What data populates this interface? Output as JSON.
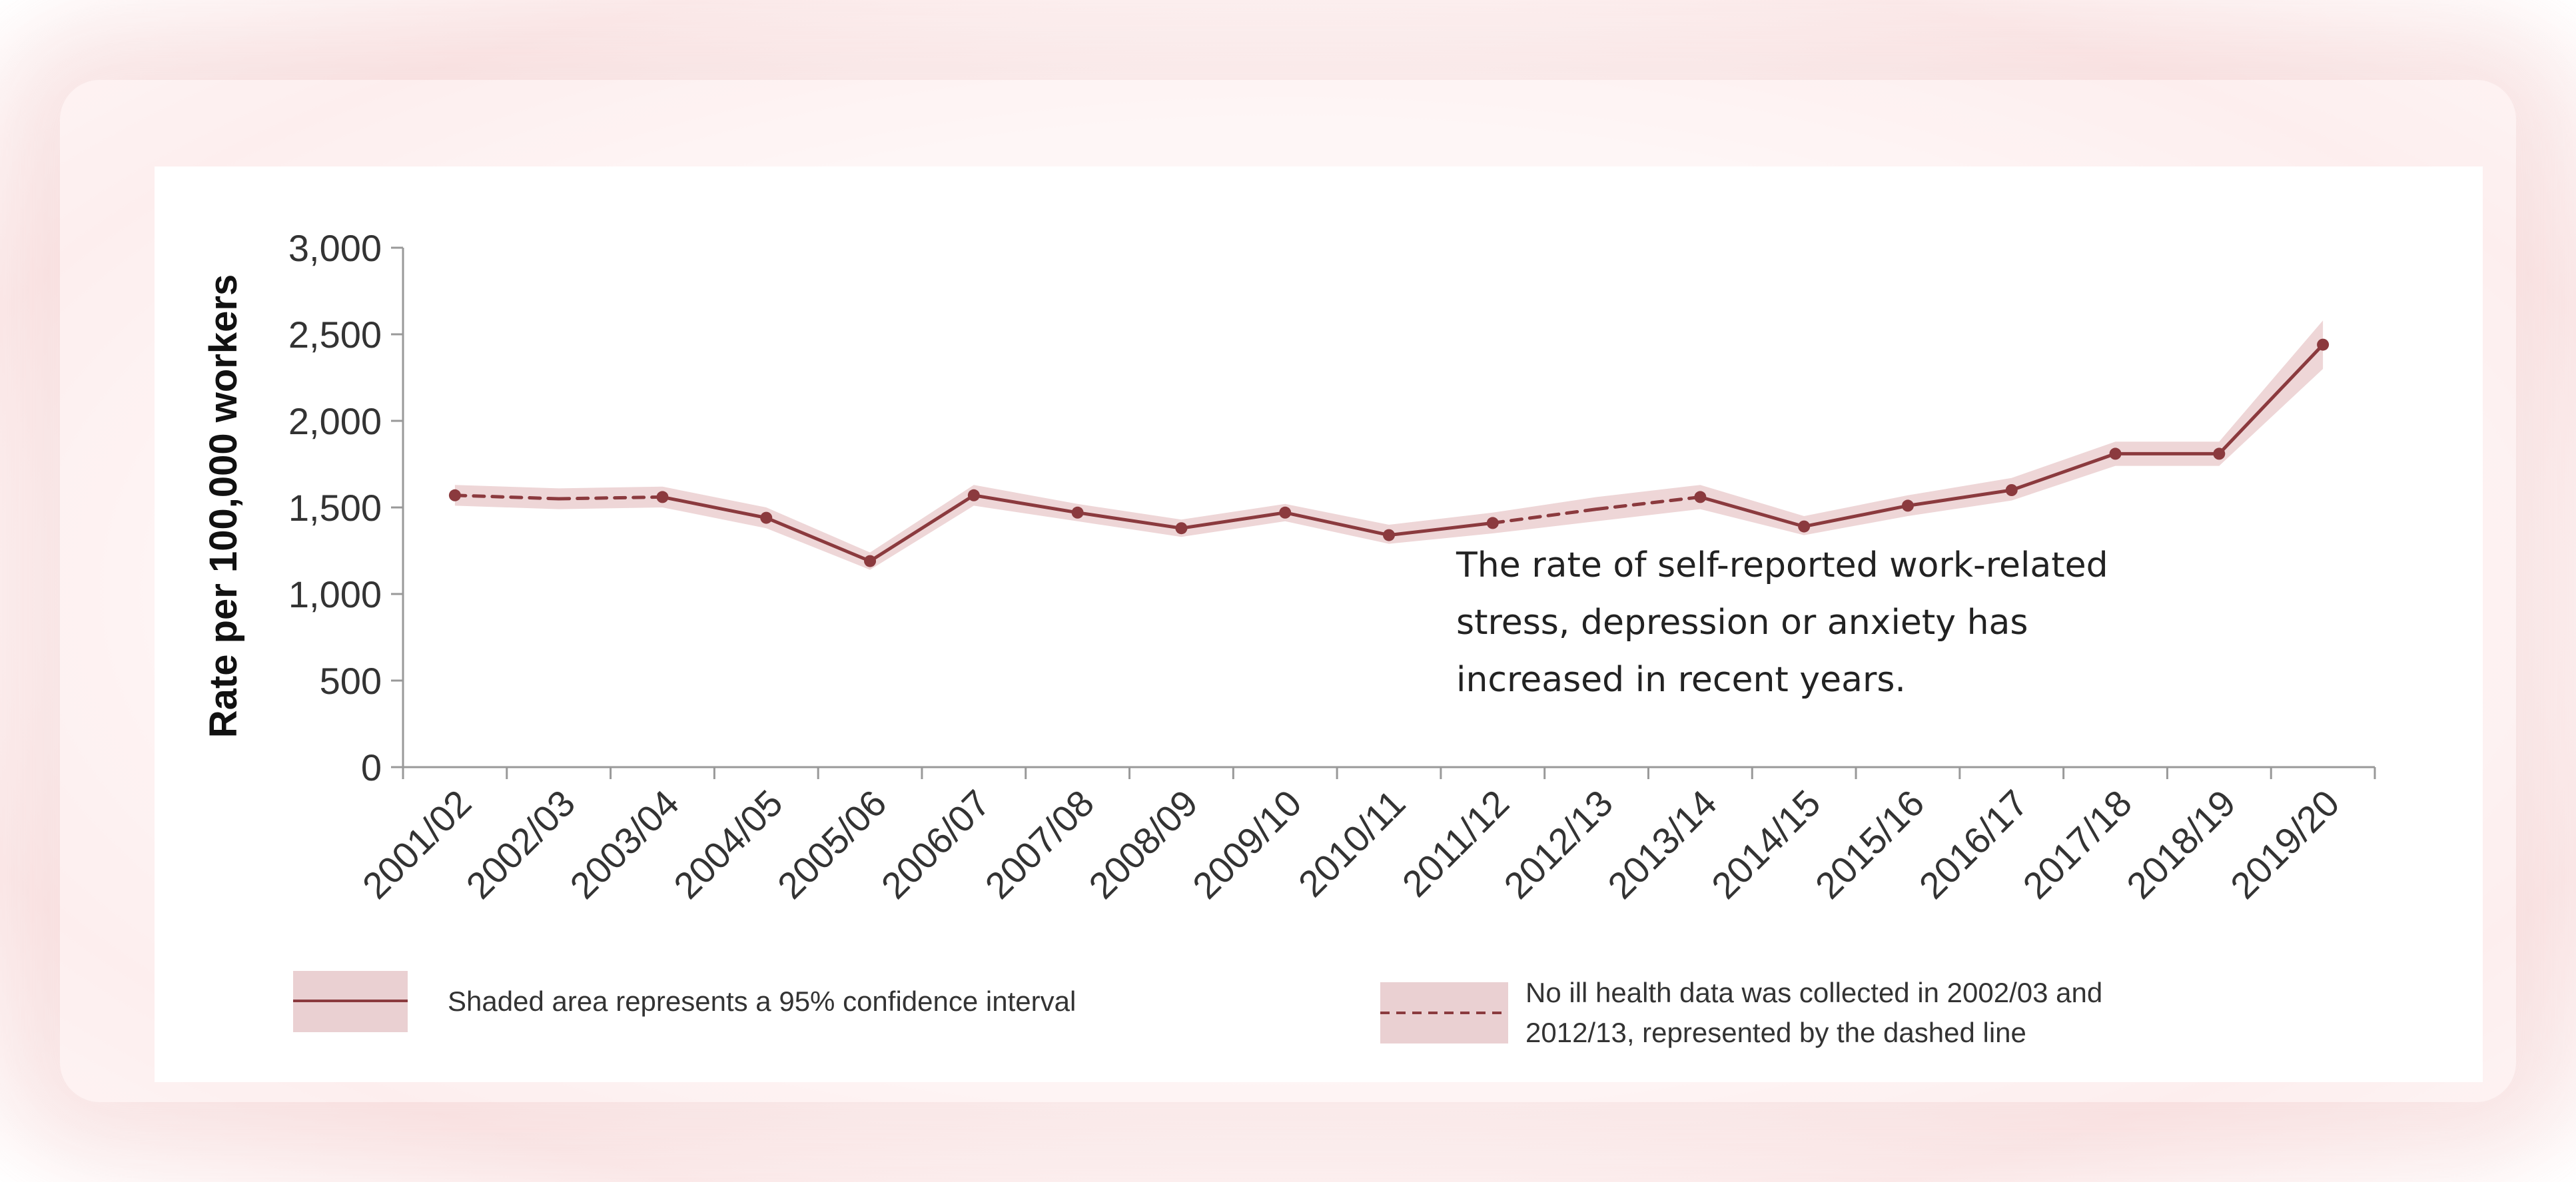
{
  "colors": {
    "line": "#8b3a3e",
    "band": "#e8c8ca",
    "axis": "#999999",
    "text": "#333333"
  },
  "chart_data": {
    "type": "line",
    "title": "",
    "xlabel": "",
    "ylabel": "Rate per 100,000 workers",
    "ylim": [
      0,
      3000
    ],
    "yticks": [
      0,
      500,
      1000,
      1500,
      2000,
      2500,
      3000
    ],
    "ytick_labels": [
      "0",
      "500",
      "1,000",
      "1,500",
      "2,000",
      "2,500",
      "3,000"
    ],
    "grid": false,
    "categories": [
      "2001/02",
      "2002/03",
      "2003/04",
      "2004/05",
      "2005/06",
      "2006/07",
      "2007/08",
      "2008/09",
      "2009/10",
      "2010/11",
      "2011/12",
      "2012/13",
      "2013/14",
      "2014/15",
      "2015/16",
      "2016/17",
      "2017/18",
      "2018/19",
      "2019/20"
    ],
    "series": [
      {
        "values": [
          1570,
          1550,
          1560,
          1440,
          1190,
          1570,
          1470,
          1380,
          1470,
          1340,
          1410,
          1490,
          1560,
          1390,
          1510,
          1600,
          1810,
          1810,
          2440
        ],
        "lower": [
          1510,
          1490,
          1500,
          1380,
          1140,
          1510,
          1420,
          1330,
          1420,
          1290,
          1350,
          1420,
          1490,
          1340,
          1450,
          1540,
          1740,
          1740,
          2300
        ],
        "upper": [
          1630,
          1610,
          1620,
          1500,
          1240,
          1630,
          1520,
          1430,
          1520,
          1400,
          1470,
          1560,
          1630,
          1450,
          1570,
          1670,
          1880,
          1880,
          2580
        ],
        "estimated_points": [
          "2002/03",
          "2012/13"
        ]
      }
    ],
    "annotation": [
      "The rate of self-reported work-related",
      "stress, depression or anxiety has",
      "increased in recent years."
    ],
    "legend": {
      "placement": "bottom",
      "items": [
        {
          "lines": [
            "Shaded area represents a 95% confidence interval"
          ]
        },
        {
          "lines": [
            "No ill health data was collected in 2002/03 and",
            "2012/13, represented by the dashed line"
          ]
        }
      ]
    }
  }
}
